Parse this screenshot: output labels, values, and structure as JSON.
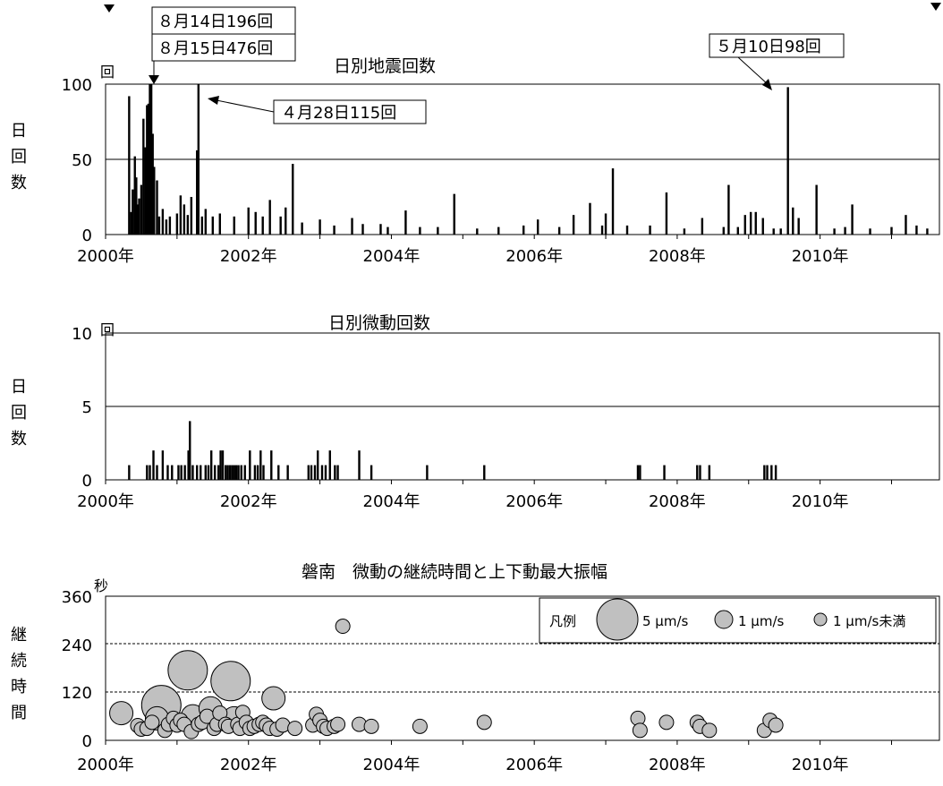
{
  "chart_data": [
    {
      "type": "bar",
      "title": "日別地震回数",
      "ylabel": "日回数",
      "unit_label": "回",
      "ylim": [
        0,
        100
      ],
      "yticks": [
        "0",
        "50",
        "100"
      ],
      "xlim": [
        2000,
        2011.67
      ],
      "xticks": [
        {
          "x": 2000,
          "label": "2000年"
        },
        {
          "x": 2002,
          "label": "2002年"
        },
        {
          "x": 2004,
          "label": "2004年"
        },
        {
          "x": 2006,
          "label": "2006年"
        },
        {
          "x": 2008,
          "label": "2008年"
        },
        {
          "x": 2010,
          "label": "2010年"
        }
      ],
      "grid": true,
      "bars": [
        [
          2000.33,
          92
        ],
        [
          2000.36,
          15
        ],
        [
          2000.38,
          30
        ],
        [
          2000.41,
          52
        ],
        [
          2000.43,
          38
        ],
        [
          2000.45,
          20
        ],
        [
          2000.47,
          24
        ],
        [
          2000.5,
          33
        ],
        [
          2000.53,
          77
        ],
        [
          2000.56,
          58
        ],
        [
          2000.58,
          86
        ],
        [
          2000.6,
          87
        ],
        [
          2000.62,
          100
        ],
        [
          2000.64,
          100
        ],
        [
          2000.66,
          67
        ],
        [
          2000.68,
          45
        ],
        [
          2000.72,
          36
        ],
        [
          2000.75,
          12
        ],
        [
          2000.8,
          17
        ],
        [
          2000.85,
          10
        ],
        [
          2000.9,
          12
        ],
        [
          2001.0,
          14
        ],
        [
          2001.05,
          26
        ],
        [
          2001.1,
          20
        ],
        [
          2001.15,
          13
        ],
        [
          2001.2,
          25
        ],
        [
          2001.28,
          56
        ],
        [
          2001.3,
          100
        ],
        [
          2001.35,
          12
        ],
        [
          2001.4,
          17
        ],
        [
          2001.5,
          12
        ],
        [
          2001.6,
          14
        ],
        [
          2001.8,
          12
        ],
        [
          2002.0,
          18
        ],
        [
          2002.1,
          15
        ],
        [
          2002.2,
          12
        ],
        [
          2002.3,
          23
        ],
        [
          2002.45,
          12
        ],
        [
          2002.52,
          18
        ],
        [
          2002.62,
          47
        ],
        [
          2002.75,
          8
        ],
        [
          2003.0,
          10
        ],
        [
          2003.2,
          6
        ],
        [
          2003.45,
          11
        ],
        [
          2003.6,
          7
        ],
        [
          2003.85,
          7
        ],
        [
          2003.95,
          5
        ],
        [
          2004.2,
          16
        ],
        [
          2004.4,
          5
        ],
        [
          2004.65,
          5
        ],
        [
          2004.88,
          27
        ],
        [
          2005.2,
          4
        ],
        [
          2005.5,
          5
        ],
        [
          2005.85,
          6
        ],
        [
          2006.05,
          10
        ],
        [
          2006.35,
          5
        ],
        [
          2006.55,
          13
        ],
        [
          2006.78,
          21
        ],
        [
          2006.95,
          6
        ],
        [
          2007.0,
          14
        ],
        [
          2007.1,
          44
        ],
        [
          2007.3,
          6
        ],
        [
          2007.62,
          6
        ],
        [
          2007.85,
          28
        ],
        [
          2008.1,
          4
        ],
        [
          2008.35,
          11
        ],
        [
          2008.65,
          5
        ],
        [
          2008.72,
          33
        ],
        [
          2008.85,
          5
        ],
        [
          2008.95,
          13
        ],
        [
          2009.03,
          15
        ],
        [
          2009.1,
          15
        ],
        [
          2009.2,
          11
        ],
        [
          2009.35,
          4
        ],
        [
          2009.45,
          4
        ],
        [
          2009.55,
          98
        ],
        [
          2009.62,
          18
        ],
        [
          2009.7,
          11
        ],
        [
          2009.95,
          33
        ],
        [
          2010.2,
          4
        ],
        [
          2010.35,
          5
        ],
        [
          2010.45,
          20
        ],
        [
          2010.7,
          4
        ],
        [
          2011.0,
          5
        ],
        [
          2011.2,
          13
        ],
        [
          2011.35,
          6
        ],
        [
          2011.5,
          4
        ]
      ],
      "annotations": [
        "８月14日196回",
        "８月15日476回",
        "４月28日115回",
        "５月10日98回"
      ]
    },
    {
      "type": "bar",
      "title": "日別微動回数",
      "ylabel": "日回数",
      "unit_label": "回",
      "ylim": [
        0,
        10
      ],
      "yticks": [
        "0",
        "5",
        "10"
      ],
      "xlim": [
        2000,
        2011.67
      ],
      "xticks": [
        {
          "x": 2000,
          "label": "2000年"
        },
        {
          "x": 2002,
          "label": "2002年"
        },
        {
          "x": 2004,
          "label": "2004年"
        },
        {
          "x": 2006,
          "label": "2006年"
        },
        {
          "x": 2008,
          "label": "2008年"
        },
        {
          "x": 2010,
          "label": "2010年"
        }
      ],
      "grid": true,
      "bars": [
        [
          2000.33,
          1
        ],
        [
          2000.58,
          1
        ],
        [
          2000.62,
          1
        ],
        [
          2000.67,
          2
        ],
        [
          2000.72,
          1
        ],
        [
          2000.8,
          2
        ],
        [
          2000.87,
          1
        ],
        [
          2000.93,
          1
        ],
        [
          2001.02,
          1
        ],
        [
          2001.06,
          1
        ],
        [
          2001.11,
          1
        ],
        [
          2001.16,
          2
        ],
        [
          2001.18,
          4
        ],
        [
          2001.22,
          1
        ],
        [
          2001.28,
          1
        ],
        [
          2001.33,
          1
        ],
        [
          2001.4,
          1
        ],
        [
          2001.44,
          1
        ],
        [
          2001.48,
          2
        ],
        [
          2001.53,
          1
        ],
        [
          2001.58,
          1
        ],
        [
          2001.61,
          2
        ],
        [
          2001.64,
          2
        ],
        [
          2001.68,
          1
        ],
        [
          2001.71,
          1
        ],
        [
          2001.74,
          1
        ],
        [
          2001.77,
          1
        ],
        [
          2001.8,
          1
        ],
        [
          2001.83,
          1
        ],
        [
          2001.86,
          1
        ],
        [
          2001.9,
          1
        ],
        [
          2001.95,
          1
        ],
        [
          2002.02,
          2
        ],
        [
          2002.09,
          1
        ],
        [
          2002.13,
          1
        ],
        [
          2002.17,
          2
        ],
        [
          2002.21,
          1
        ],
        [
          2002.32,
          2
        ],
        [
          2002.42,
          1
        ],
        [
          2002.55,
          1
        ],
        [
          2002.84,
          1
        ],
        [
          2002.88,
          1
        ],
        [
          2002.93,
          1
        ],
        [
          2002.97,
          2
        ],
        [
          2003.03,
          1
        ],
        [
          2003.08,
          1
        ],
        [
          2003.14,
          2
        ],
        [
          2003.21,
          1
        ],
        [
          2003.25,
          1
        ],
        [
          2003.55,
          2
        ],
        [
          2003.72,
          1
        ],
        [
          2004.5,
          1
        ],
        [
          2005.3,
          1
        ],
        [
          2007.45,
          1
        ],
        [
          2007.48,
          1
        ],
        [
          2007.82,
          1
        ],
        [
          2008.28,
          1
        ],
        [
          2008.32,
          1
        ],
        [
          2008.45,
          1
        ],
        [
          2009.22,
          1
        ],
        [
          2009.26,
          1
        ],
        [
          2009.32,
          1
        ],
        [
          2009.38,
          1
        ]
      ]
    },
    {
      "type": "scatter",
      "title": "磐南　微動の継続時間と上下動最大振幅",
      "ylabel": "継続時間",
      "unit_label": "秒",
      "ylim": [
        0,
        360
      ],
      "yticks": [
        "0",
        "120",
        "240",
        "360"
      ],
      "xlim": [
        2000,
        2011.67
      ],
      "xticks": [
        {
          "x": 2000,
          "label": "2000年"
        },
        {
          "x": 2002,
          "label": "2002年"
        },
        {
          "x": 2004,
          "label": "2004年"
        },
        {
          "x": 2006,
          "label": "2006年"
        },
        {
          "x": 2008,
          "label": "2008年"
        },
        {
          "x": 2010,
          "label": "2010年"
        }
      ],
      "grid": true,
      "legend": {
        "title": "凡例",
        "placement": "top-right",
        "items": [
          "5 μm/s",
          "1 μm/s",
          "1 μm/s未満"
        ]
      },
      "points": [
        [
          2000.22,
          68,
          2
        ],
        [
          2000.45,
          37,
          1
        ],
        [
          2000.5,
          28,
          1
        ],
        [
          2000.58,
          30,
          1
        ],
        [
          2000.65,
          45,
          1
        ],
        [
          2000.72,
          55,
          2
        ],
        [
          2000.78,
          88,
          3
        ],
        [
          2000.83,
          25,
          1
        ],
        [
          2000.88,
          40,
          1
        ],
        [
          2000.95,
          55,
          1
        ],
        [
          2001.0,
          38,
          1
        ],
        [
          2001.05,
          50,
          1
        ],
        [
          2001.1,
          40,
          1
        ],
        [
          2001.15,
          175,
          3
        ],
        [
          2001.2,
          22,
          1
        ],
        [
          2001.22,
          60,
          2
        ],
        [
          2001.3,
          40,
          1
        ],
        [
          2001.35,
          45,
          1
        ],
        [
          2001.42,
          60,
          1
        ],
        [
          2001.47,
          80,
          2
        ],
        [
          2001.52,
          30,
          1
        ],
        [
          2001.56,
          40,
          1
        ],
        [
          2001.6,
          68,
          1
        ],
        [
          2001.68,
          40,
          1
        ],
        [
          2001.72,
          35,
          1
        ],
        [
          2001.75,
          148,
          3
        ],
        [
          2001.8,
          55,
          2
        ],
        [
          2001.85,
          40,
          1
        ],
        [
          2001.88,
          30,
          1
        ],
        [
          2001.92,
          70,
          1
        ],
        [
          2001.97,
          45,
          1
        ],
        [
          2002.02,
          30,
          1
        ],
        [
          2002.08,
          35,
          1
        ],
        [
          2002.15,
          40,
          1
        ],
        [
          2002.2,
          45,
          1
        ],
        [
          2002.25,
          38,
          1
        ],
        [
          2002.3,
          30,
          1
        ],
        [
          2002.35,
          105,
          2
        ],
        [
          2002.4,
          28,
          1
        ],
        [
          2002.48,
          38,
          1
        ],
        [
          2002.65,
          30,
          1
        ],
        [
          2002.9,
          38,
          1
        ],
        [
          2002.95,
          65,
          1
        ],
        [
          2003.0,
          50,
          1
        ],
        [
          2003.05,
          35,
          1
        ],
        [
          2003.1,
          30,
          1
        ],
        [
          2003.2,
          35,
          1
        ],
        [
          2003.25,
          40,
          1
        ],
        [
          2003.32,
          285,
          1
        ],
        [
          2003.55,
          40,
          1
        ],
        [
          2003.72,
          35,
          1
        ],
        [
          2004.4,
          35,
          1
        ],
        [
          2005.3,
          45,
          1
        ],
        [
          2007.45,
          55,
          1
        ],
        [
          2007.48,
          25,
          1
        ],
        [
          2007.85,
          45,
          1
        ],
        [
          2008.28,
          45,
          1
        ],
        [
          2008.32,
          35,
          1
        ],
        [
          2008.45,
          25,
          1
        ],
        [
          2009.22,
          25,
          1
        ],
        [
          2009.3,
          50,
          1
        ],
        [
          2009.38,
          38,
          1
        ]
      ]
    }
  ]
}
